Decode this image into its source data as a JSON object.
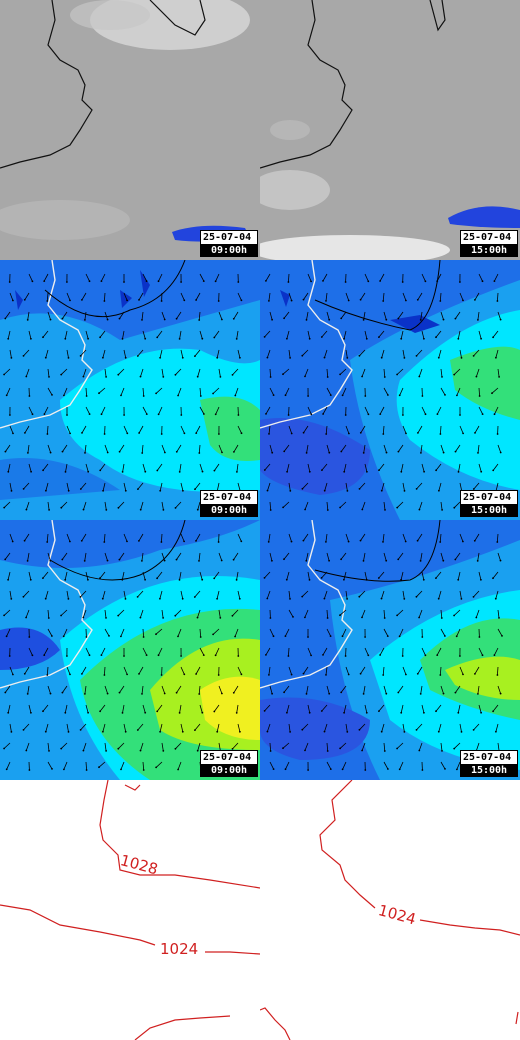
{
  "panels": {
    "row1": [
      {
        "date": "25-07-04",
        "time": "09:00h"
      },
      {
        "date": "25-07-04",
        "time": "15:00h"
      }
    ],
    "row2": [
      {
        "date": "25-07-04",
        "time": "09:00h"
      },
      {
        "date": "25-07-04",
        "time": "15:00h"
      }
    ],
    "row3": [
      {
        "date": "25-07-04",
        "time": "09:00h"
      },
      {
        "date": "25-07-04",
        "time": "15:00h"
      }
    ]
  },
  "isobars": {
    "left": [
      "1028",
      "1024"
    ],
    "right": [
      "1024"
    ]
  },
  "colors": {
    "cloud_gray": "#a9a9a9",
    "sea_blue": "#1e6fe8",
    "cyan": "#00e6ff",
    "green": "#33e07a",
    "yellow": "#f0f020",
    "isobar_red": "#d02020"
  }
}
